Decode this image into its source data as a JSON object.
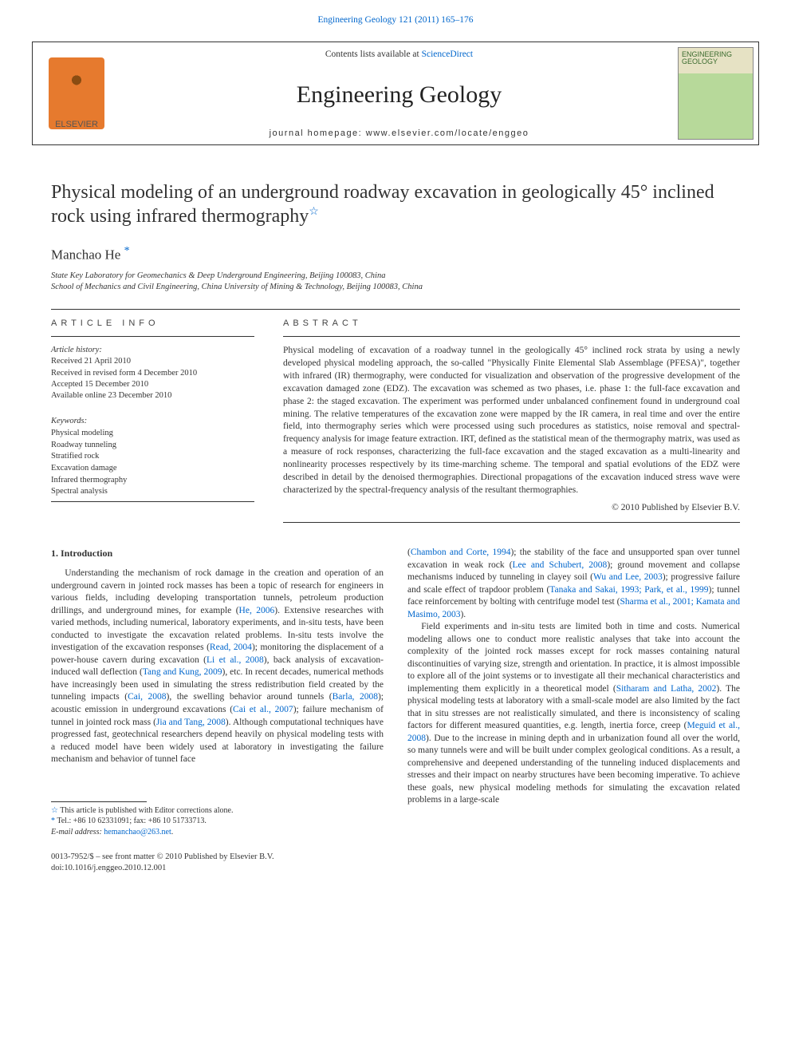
{
  "colors": {
    "link": "#0066cc",
    "text": "#333333",
    "rule": "#333333",
    "logo_orange": "#e67a2e",
    "cover_top": "#e6e2c4",
    "cover_bottom": "#b7d99a"
  },
  "header": {
    "top_citation": "Engineering Geology 121 (2011) 165–176",
    "contents_prefix": "Contents lists available at ",
    "contents_link": "ScienceDirect",
    "journal_name": "Engineering Geology",
    "homepage_label": "journal homepage: ",
    "homepage_url": "www.elsevier.com/locate/enggeo",
    "publisher_left": "ELSEVIER",
    "cover_label": "ENGINEERING GEOLOGY"
  },
  "article": {
    "title": "Physical modeling of an underground roadway excavation in geologically 45° inclined rock using infrared thermography",
    "title_star": "☆",
    "author": "Manchao He",
    "author_mark": "*",
    "affiliations": [
      "State Key Laboratory for Geomechanics & Deep Underground Engineering, Beijing 100083, China",
      "School of Mechanics and Civil Engineering, China University of Mining & Technology, Beijing 100083, China"
    ]
  },
  "info": {
    "article_info_head": "ARTICLE INFO",
    "abstract_head": "ABSTRACT",
    "history_label": "Article history:",
    "history": [
      "Received 21 April 2010",
      "Received in revised form 4 December 2010",
      "Accepted 15 December 2010",
      "Available online 23 December 2010"
    ],
    "keywords_label": "Keywords:",
    "keywords": [
      "Physical modeling",
      "Roadway tunneling",
      "Stratified rock",
      "Excavation damage",
      "Infrared thermography",
      "Spectral analysis"
    ],
    "abstract": "Physical modeling of excavation of a roadway tunnel in the geologically 45° inclined rock strata by using a newly developed physical modeling approach, the so-called \"Physically Finite Elemental Slab Assemblage (PFESA)\", together with infrared (IR) thermography, were conducted for visualization and observation of the progressive development of the excavation damaged zone (EDZ). The excavation was schemed as two phases, i.e. phase 1: the full-face excavation and phase 2: the staged excavation. The experiment was performed under unbalanced confinement found in underground coal mining. The relative temperatures of the excavation zone were mapped by the IR camera, in real time and over the entire field, into thermography series which were processed using such procedures as statistics, noise removal and spectral-frequency analysis for image feature extraction. IRT, defined as the statistical mean of the thermography matrix, was used as a measure of rock responses, characterizing the full-face excavation and the staged excavation as a multi-linearity and nonlinearity processes respectively by its time-marching scheme. The temporal and spatial evolutions of the EDZ were described in detail by the denoised thermographies. Directional propagations of the excavation induced stress wave were characterized by the spectral-frequency analysis of the resultant thermographies.",
    "copyright": "© 2010 Published by Elsevier B.V."
  },
  "body": {
    "section_heading": "1. Introduction",
    "col1": {
      "p1a": "Understanding the mechanism of rock damage in the creation and operation of an underground cavern in jointed rock masses has been a topic of research for engineers in various fields, including developing transportation tunnels, petroleum production drillings, and underground mines, for example (",
      "r1": "He, 2006",
      "p1b": "). Extensive researches with varied methods, including numerical, laboratory experiments, and in-situ tests, have been conducted to investigate the excavation related problems. In-situ tests involve the investigation of the excavation responses (",
      "r2": "Read, 2004",
      "p1c": "); monitoring the displacement of a power-house cavern during excavation (",
      "r3": "Li et al., 2008",
      "p1d": "), back analysis of excavation-induced wall deflection (",
      "r4": "Tang and Kung, 2009",
      "p1e": "), etc. In recent decades, numerical methods have increasingly been used in simulating the stress redistribution field created by the tunneling impacts (",
      "r5": "Cai, 2008",
      "p1f": "), the swelling behavior around tunnels (",
      "r6": "Barla, 2008",
      "p1g": "); acoustic emission in underground excavations (",
      "r7": "Cai et al., 2007",
      "p1h": "); failure mechanism of tunnel in jointed rock mass (",
      "r8": "Jia and Tang, 2008",
      "p1i": "). Although computational techniques have progressed fast, geotechnical researchers depend heavily on physical modeling tests with a reduced model have been widely used at laboratory in investigating the failure mechanism and behavior of tunnel face"
    },
    "col2": {
      "p1a": "(",
      "r1": "Chambon and Corte, 1994",
      "p1b": "); the stability of the face and unsupported span over tunnel excavation in weak rock (",
      "r2": "Lee and Schubert, 2008",
      "p1c": "); ground movement and collapse mechanisms induced by tunneling in clayey soil (",
      "r3": "Wu and Lee, 2003",
      "p1d": "); progressive failure and scale effect of trapdoor problem (",
      "r4": "Tanaka and Sakai, 1993; Park, et al., 1999",
      "p1e": "); tunnel face reinforcement by bolting with centrifuge model test (",
      "r5": "Sharma et al., 2001; Kamata and Masimo, 2003",
      "p1f": ").",
      "p2a": "Field experiments and in-situ tests are limited both in time and costs. Numerical modeling allows one to conduct more realistic analyses that take into account the complexity of the jointed rock masses except for rock masses containing natural discontinuities of varying size, strength and orientation. In practice, it is almost impossible to explore all of the joint systems or to investigate all their mechanical characteristics and implementing them explicitly in a theoretical model (",
      "r6": "Sitharam and Latha, 2002",
      "p2b": "). The physical modeling tests at laboratory with a small-scale model are also limited by the fact that in situ stresses are not realistically simulated, and there is inconsistency of scaling factors for different measured quantities, e.g. length, inertia force, creep (",
      "r7": "Meguid et al., 2008",
      "p2c": "). Due to the increase in mining depth and in urbanization found all over the world, so many tunnels were and will be built under complex geological conditions. As a result, a comprehensive and deepened understanding of the tunneling induced displacements and stresses and their impact on nearby structures have been becoming imperative. To achieve these goals, new physical modeling methods for simulating the excavation related problems in a large-scale"
    }
  },
  "footnotes": {
    "fn1_sym": "☆",
    "fn1": "This article is published with Editor corrections alone.",
    "fn2_sym": "*",
    "fn2": "Tel.: +86 10 62331091; fax: +86 10 51733713.",
    "fn3_label": "E-mail address:",
    "fn3_email": "hemanchao@263.net",
    "fn3_tail": "."
  },
  "bottom": {
    "issn_line": "0013-7952/$ – see front matter © 2010 Published by Elsevier B.V.",
    "doi": "doi:10.1016/j.enggeo.2010.12.001"
  }
}
